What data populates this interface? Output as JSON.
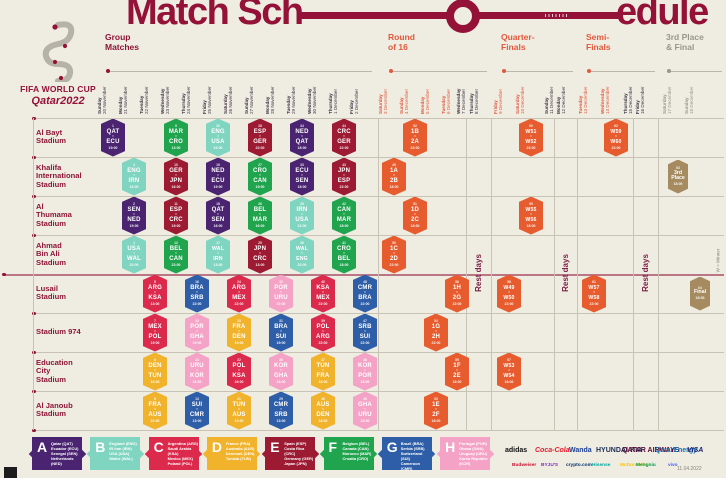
{
  "title": {
    "part1": "Match Sch",
    "part2": "edule"
  },
  "logo": {
    "wordmark_line1": "FIFA WORLD CUP",
    "wordmark_line2": "Qatar2022"
  },
  "sections": [
    {
      "id": "group",
      "label": "Group\nMatches",
      "color": "#8E1537"
    },
    {
      "id": "r16",
      "label": "Round\nof 16",
      "color": "#E2593C"
    },
    {
      "id": "qf",
      "label": "Quarter-\nFinals",
      "color": "#E2593C"
    },
    {
      "id": "sf",
      "label": "Semi-\nFinals",
      "color": "#E2593C"
    },
    {
      "id": "final",
      "label": "3rd Place\n& Final",
      "color": "#9B968A"
    }
  ],
  "dates": [
    {
      "day": "Sunday",
      "date": "20 November",
      "tone": "dark"
    },
    {
      "day": "Monday",
      "date": "21 November",
      "tone": "dark"
    },
    {
      "day": "Tuesday",
      "date": "22 November",
      "tone": "dark"
    },
    {
      "day": "Wednesday",
      "date": "23 November",
      "tone": "dark"
    },
    {
      "day": "Thursday",
      "date": "24 November",
      "tone": "dark"
    },
    {
      "day": "Friday",
      "date": "25 November",
      "tone": "dark"
    },
    {
      "day": "Saturday",
      "date": "26 November",
      "tone": "dark"
    },
    {
      "day": "Sunday",
      "date": "27 November",
      "tone": "dark"
    },
    {
      "day": "Monday",
      "date": "28 November",
      "tone": "dark"
    },
    {
      "day": "Tuesday",
      "date": "29 November",
      "tone": "dark"
    },
    {
      "day": "Wednesday",
      "date": "30 November",
      "tone": "dark"
    },
    {
      "day": "Thursday",
      "date": "1 December",
      "tone": "dark"
    },
    {
      "day": "Friday",
      "date": "2 December",
      "tone": "dark"
    },
    {
      "day": "Saturday",
      "date": "3 December",
      "tone": "active"
    },
    {
      "day": "Sunday",
      "date": "4 December",
      "tone": "active"
    },
    {
      "day": "Monday",
      "date": "5 December",
      "tone": "active"
    },
    {
      "day": "Tuesday",
      "date": "6 December",
      "tone": "active"
    },
    {
      "day": "Wednesday",
      "date": "7 December",
      "tone": "rest"
    },
    {
      "day": "Thursday",
      "date": "8 December",
      "tone": "rest"
    },
    {
      "day": "Friday",
      "date": "9 December",
      "tone": "active"
    },
    {
      "day": "Saturday",
      "date": "10 December",
      "tone": "active"
    },
    {
      "day": "Sunday",
      "date": "11 December",
      "tone": "rest"
    },
    {
      "day": "Monday",
      "date": "12 December",
      "tone": "rest"
    },
    {
      "day": "Tuesday",
      "date": "13 December",
      "tone": "active"
    },
    {
      "day": "Wednesday",
      "date": "14 December",
      "tone": "active"
    },
    {
      "day": "Thursday",
      "date": "15 December",
      "tone": "rest"
    },
    {
      "day": "Friday",
      "date": "16 December",
      "tone": "rest"
    },
    {
      "day": "Saturday",
      "date": "17 December",
      "tone": "final"
    },
    {
      "day": "Sunday",
      "date": "18 December",
      "tone": "final"
    }
  ],
  "date_tone_colors": {
    "dark": "#3E3244",
    "active": "#E2593C",
    "rest": "#3E3244",
    "final": "#9B968A"
  },
  "stadiums": [
    "Al Bayt\nStadium",
    "Khalifa\nInternational\nStadium",
    "Al\nThumama\nStadium",
    "Ahmad\nBin Ali\nStadium",
    "Lusail\nStadium",
    "Stadium 974",
    "Education\nCity\nStadium",
    "Al Janoub\nStadium"
  ],
  "group_colors": {
    "A": "#4A2471",
    "B": "#7FD5C0",
    "C": "#DC2A4D",
    "D": "#F1B32B",
    "E": "#9C1B33",
    "F": "#21A44E",
    "G": "#2E5EA8",
    "H": "#F4A3C6",
    "KO": "#E65C2F",
    "FINAL": "#A58B5F"
  },
  "rest_label": "Rest days",
  "matches": [
    {
      "stadium": 0,
      "col": 0,
      "num": "1",
      "home": "QAT",
      "away": "ECU",
      "time": "19:00",
      "group": "A"
    },
    {
      "stadium": 0,
      "col": 3,
      "num": "9",
      "home": "MAR",
      "away": "CRO",
      "time": "13:00",
      "group": "F"
    },
    {
      "stadium": 0,
      "col": 5,
      "num": "20",
      "home": "ENG",
      "away": "USA",
      "time": "22:00",
      "group": "B"
    },
    {
      "stadium": 0,
      "col": 7,
      "num": "28",
      "home": "ESP",
      "away": "GER",
      "time": "22:00",
      "group": "E"
    },
    {
      "stadium": 0,
      "col": 9,
      "num": "34",
      "home": "NED",
      "away": "QAT",
      "time": "18:00",
      "group": "A"
    },
    {
      "stadium": 0,
      "col": 11,
      "num": "44",
      "home": "CRC",
      "away": "GER",
      "time": "22:00",
      "group": "E"
    },
    {
      "stadium": 0,
      "col": 14,
      "num": "52",
      "home": "1B",
      "away": "2A",
      "time": "22:00",
      "group": "KO"
    },
    {
      "stadium": 0,
      "col": 20,
      "num": "60",
      "home": "W51",
      "away": "W52",
      "time": "22:00",
      "group": "KO"
    },
    {
      "stadium": 0,
      "col": 24,
      "num": "62",
      "home": "W59",
      "away": "W60",
      "time": "22:00",
      "group": "KO"
    },
    {
      "stadium": 1,
      "col": 1,
      "num": "3",
      "home": "ENG",
      "away": "IRN",
      "time": "16:00",
      "group": "B"
    },
    {
      "stadium": 1,
      "col": 3,
      "num": "10",
      "home": "GER",
      "away": "JPN",
      "time": "16:00",
      "group": "E"
    },
    {
      "stadium": 1,
      "col": 5,
      "num": "19",
      "home": "NED",
      "away": "ECU",
      "time": "19:00",
      "group": "A"
    },
    {
      "stadium": 1,
      "col": 7,
      "num": "27",
      "home": "CRO",
      "away": "CAN",
      "time": "19:00",
      "group": "F"
    },
    {
      "stadium": 1,
      "col": 9,
      "num": "33",
      "home": "ECU",
      "away": "SEN",
      "time": "18:00",
      "group": "A"
    },
    {
      "stadium": 1,
      "col": 11,
      "num": "43",
      "home": "JPN",
      "away": "ESP",
      "time": "22:00",
      "group": "E"
    },
    {
      "stadium": 1,
      "col": 13,
      "num": "49",
      "home": "1A",
      "away": "2B",
      "time": "18:00",
      "group": "KO"
    },
    {
      "stadium": 1,
      "col": 27,
      "num": "63",
      "label": "3rd\nPlace",
      "time": "18:00",
      "group": "FINAL"
    },
    {
      "stadium": 2,
      "col": 1,
      "num": "2",
      "home": "SEN",
      "away": "NED",
      "time": "19:00",
      "group": "A"
    },
    {
      "stadium": 2,
      "col": 3,
      "num": "11",
      "home": "ESP",
      "away": "CRC",
      "time": "19:00",
      "group": "E"
    },
    {
      "stadium": 2,
      "col": 5,
      "num": "18",
      "home": "QAT",
      "away": "SEN",
      "time": "16:00",
      "group": "A"
    },
    {
      "stadium": 2,
      "col": 7,
      "num": "26",
      "home": "BEL",
      "away": "MAR",
      "time": "16:00",
      "group": "F"
    },
    {
      "stadium": 2,
      "col": 9,
      "num": "35",
      "home": "IRN",
      "away": "USA",
      "time": "22:00",
      "group": "B"
    },
    {
      "stadium": 2,
      "col": 11,
      "num": "42",
      "home": "CAN",
      "away": "MAR",
      "time": "18:00",
      "group": "F"
    },
    {
      "stadium": 2,
      "col": 14,
      "num": "51",
      "home": "1D",
      "away": "2C",
      "time": "18:00",
      "group": "KO"
    },
    {
      "stadium": 2,
      "col": 20,
      "num": "59",
      "home": "W55",
      "away": "W56",
      "time": "18:00",
      "group": "KO"
    },
    {
      "stadium": 3,
      "col": 1,
      "num": "4",
      "home": "USA",
      "away": "WAL",
      "time": "22:00",
      "group": "B"
    },
    {
      "stadium": 3,
      "col": 3,
      "num": "12",
      "home": "BEL",
      "away": "CAN",
      "time": "22:00",
      "group": "F"
    },
    {
      "stadium": 3,
      "col": 5,
      "num": "17",
      "home": "WAL",
      "away": "IRN",
      "time": "13:00",
      "group": "B"
    },
    {
      "stadium": 3,
      "col": 7,
      "num": "25",
      "home": "JPN",
      "away": "CRC",
      "time": "13:00",
      "group": "E"
    },
    {
      "stadium": 3,
      "col": 9,
      "num": "36",
      "home": "WAL",
      "away": "ENG",
      "time": "22:00",
      "group": "B"
    },
    {
      "stadium": 3,
      "col": 11,
      "num": "41",
      "home": "CRO",
      "away": "BEL",
      "time": "18:00",
      "group": "F"
    },
    {
      "stadium": 3,
      "col": 13,
      "num": "50",
      "home": "1C",
      "away": "2D",
      "time": "22:00",
      "group": "KO"
    },
    {
      "stadium": 4,
      "col": 2,
      "num": "5",
      "home": "ARG",
      "away": "KSA",
      "time": "13:00",
      "group": "C"
    },
    {
      "stadium": 4,
      "col": 4,
      "num": "16",
      "home": "BRA",
      "away": "SRB",
      "time": "22:00",
      "group": "G"
    },
    {
      "stadium": 4,
      "col": 6,
      "num": "24",
      "home": "ARG",
      "away": "MEX",
      "time": "22:00",
      "group": "C"
    },
    {
      "stadium": 4,
      "col": 8,
      "num": "32",
      "home": "POR",
      "away": "URU",
      "time": "22:00",
      "group": "H"
    },
    {
      "stadium": 4,
      "col": 10,
      "num": "40",
      "home": "KSA",
      "away": "MEX",
      "time": "22:00",
      "group": "C"
    },
    {
      "stadium": 4,
      "col": 12,
      "num": "48",
      "home": "CMR",
      "away": "BRA",
      "time": "22:00",
      "group": "G"
    },
    {
      "stadium": 4,
      "col": 16,
      "num": "56",
      "home": "1H",
      "away": "2G",
      "time": "22:00",
      "group": "KO"
    },
    {
      "stadium": 4,
      "col": 19,
      "num": "58",
      "home": "W49",
      "away": "W50",
      "time": "22:00",
      "group": "KO"
    },
    {
      "stadium": 4,
      "col": 23,
      "num": "61",
      "home": "W57",
      "away": "W58",
      "time": "22:00",
      "group": "KO"
    },
    {
      "stadium": 4,
      "col": 28,
      "num": "64",
      "label": "Final",
      "time": "18:00",
      "group": "FINAL"
    },
    {
      "stadium": 5,
      "col": 2,
      "num": "7",
      "home": "MEX",
      "away": "POL",
      "time": "19:00",
      "group": "C"
    },
    {
      "stadium": 5,
      "col": 4,
      "num": "15",
      "home": "POR",
      "away": "GHA",
      "time": "19:00",
      "group": "H"
    },
    {
      "stadium": 5,
      "col": 6,
      "num": "23",
      "home": "FRA",
      "away": "DEN",
      "time": "19:00",
      "group": "D"
    },
    {
      "stadium": 5,
      "col": 8,
      "num": "31",
      "home": "BRA",
      "away": "SUI",
      "time": "19:00",
      "group": "G"
    },
    {
      "stadium": 5,
      "col": 10,
      "num": "39",
      "home": "POL",
      "away": "ARG",
      "time": "22:00",
      "group": "C"
    },
    {
      "stadium": 5,
      "col": 12,
      "num": "47",
      "home": "SRB",
      "away": "SUI",
      "time": "22:00",
      "group": "G"
    },
    {
      "stadium": 5,
      "col": 15,
      "num": "54",
      "home": "1G",
      "away": "2H",
      "time": "22:00",
      "group": "KO"
    },
    {
      "stadium": 6,
      "col": 2,
      "num": "6",
      "home": "DEN",
      "away": "TUN",
      "time": "16:00",
      "group": "D"
    },
    {
      "stadium": 6,
      "col": 4,
      "num": "14",
      "home": "URU",
      "away": "KOR",
      "time": "16:00",
      "group": "H"
    },
    {
      "stadium": 6,
      "col": 6,
      "num": "22",
      "home": "POL",
      "away": "KSA",
      "time": "16:00",
      "group": "C"
    },
    {
      "stadium": 6,
      "col": 8,
      "num": "30",
      "home": "KOR",
      "away": "GHA",
      "time": "16:00",
      "group": "H"
    },
    {
      "stadium": 6,
      "col": 10,
      "num": "37",
      "home": "TUN",
      "away": "FRA",
      "time": "18:00",
      "group": "D"
    },
    {
      "stadium": 6,
      "col": 12,
      "num": "46",
      "home": "KOR",
      "away": "POR",
      "time": "18:00",
      "group": "H"
    },
    {
      "stadium": 6,
      "col": 16,
      "num": "55",
      "home": "1F",
      "away": "2E",
      "time": "18:00",
      "group": "KO"
    },
    {
      "stadium": 6,
      "col": 19,
      "num": "57",
      "home": "W53",
      "away": "W54",
      "time": "18:00",
      "group": "KO"
    },
    {
      "stadium": 7,
      "col": 2,
      "num": "8",
      "home": "FRA",
      "away": "AUS",
      "time": "22:00",
      "group": "D"
    },
    {
      "stadium": 7,
      "col": 4,
      "num": "13",
      "home": "SUI",
      "away": "CMR",
      "time": "13:00",
      "group": "G"
    },
    {
      "stadium": 7,
      "col": 6,
      "num": "21",
      "home": "TUN",
      "away": "AUS",
      "time": "13:00",
      "group": "D"
    },
    {
      "stadium": 7,
      "col": 8,
      "num": "29",
      "home": "CMR",
      "away": "SRB",
      "time": "13:00",
      "group": "G"
    },
    {
      "stadium": 7,
      "col": 10,
      "num": "38",
      "home": "AUS",
      "away": "DEN",
      "time": "18:00",
      "group": "D"
    },
    {
      "stadium": 7,
      "col": 12,
      "num": "45",
      "home": "GHA",
      "away": "URU",
      "time": "18:00",
      "group": "H"
    },
    {
      "stadium": 7,
      "col": 15,
      "num": "53",
      "home": "1E",
      "away": "2F",
      "time": "18:00",
      "group": "KO"
    }
  ],
  "legend": [
    {
      "letter": "A",
      "color": "#4A2471",
      "teams": "Qatar (QAT)\nEcuador (ECU)\nSenegal (SEN)\nNetherlands (NED)"
    },
    {
      "letter": "B",
      "color": "#7FD5C0",
      "teams": "England (ENG)\nIR Iran (IRN)\nUSA (USA)\nWales (WAL)"
    },
    {
      "letter": "C",
      "color": "#DC2A4D",
      "teams": "Argentina (ARG)\nSaudi Arabia (KSA)\nMexico (MEX)\nPoland (POL)"
    },
    {
      "letter": "D",
      "color": "#F1B32B",
      "teams": "France (FRA)\nAustralia (AUS)\nDenmark (DEN)\nTunisia (TUN)"
    },
    {
      "letter": "E",
      "color": "#9C1B33",
      "teams": "Spain (ESP)\nCosta Rica (CRC)\nGermany (GER)\nJapan (JPN)"
    },
    {
      "letter": "F",
      "color": "#21A44E",
      "teams": "Belgium (BEL)\nCanada (CAN)\nMorocco (MAR)\nCroatia (CRO)"
    },
    {
      "letter": "G",
      "color": "#2E5EA8",
      "teams": "Brazil (BRA)\nSerbia (SRB)\nSwitzerland (SUI)\nCameroon (CMR)"
    },
    {
      "letter": "H",
      "color": "#F4A3C6",
      "teams": "Portugal (POR)\nGhana (GHA)\nUruguay (URU)\nKorea Republic (KOR)"
    }
  ],
  "sponsors": {
    "row1": [
      {
        "name": "adidas",
        "color": "#111111"
      },
      {
        "name": "Coca-Cola",
        "color": "#E41D2D"
      },
      {
        "name": "Wanda",
        "color": "#1B3E94"
      },
      {
        "name": "HYUNDAI-KIA",
        "color": "#1B2D57"
      },
      {
        "name": "QATAR AIRWAYS",
        "color": "#5C0632"
      },
      {
        "name": "QatarEnergy",
        "color": "#1273B8"
      },
      {
        "name": "VISA",
        "color": "#1A1F71"
      }
    ],
    "row2": [
      {
        "name": "Budweiser",
        "color": "#C8102E"
      },
      {
        "name": "BYJU'S",
        "color": "#7B2CBF"
      },
      {
        "name": "crypto.com",
        "color": "#03316C"
      },
      {
        "name": "Hisense",
        "color": "#00A8A0"
      },
      {
        "name": "McDonald's",
        "color": "#FFC400"
      },
      {
        "name": "Mengniu",
        "color": "#009A44"
      },
      {
        "name": "vivo",
        "color": "#415FFF"
      }
    ]
  },
  "notes": {
    "winner": "W = Winner",
    "version": "11.04.2022"
  }
}
